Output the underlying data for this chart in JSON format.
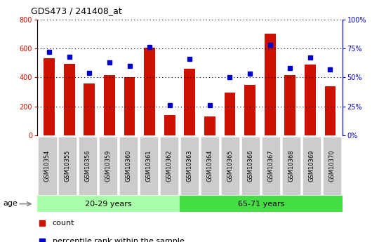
{
  "title": "GDS473 / 241408_at",
  "samples": [
    "GSM10354",
    "GSM10355",
    "GSM10356",
    "GSM10359",
    "GSM10360",
    "GSM10361",
    "GSM10362",
    "GSM10363",
    "GSM10364",
    "GSM10365",
    "GSM10366",
    "GSM10367",
    "GSM10368",
    "GSM10369",
    "GSM10370"
  ],
  "counts": [
    530,
    495,
    360,
    415,
    400,
    605,
    140,
    460,
    130,
    295,
    350,
    700,
    415,
    490,
    340
  ],
  "percentile": [
    72,
    68,
    54,
    63,
    60,
    76,
    26,
    66,
    26,
    50,
    53,
    78,
    58,
    67,
    57
  ],
  "bar_color": "#cc1100",
  "marker_color": "#0000cc",
  "ylim_left": [
    0,
    800
  ],
  "ylim_right": [
    0,
    100
  ],
  "yticks_left": [
    0,
    200,
    400,
    600,
    800
  ],
  "yticks_right": [
    0,
    25,
    50,
    75,
    100
  ],
  "ytick_labels_right": [
    "0%",
    "25%",
    "50%",
    "75%",
    "100%"
  ],
  "group1_label": "20-29 years",
  "group2_label": "65-71 years",
  "group1_count": 7,
  "group2_count": 8,
  "age_label": "age",
  "legend_count": "count",
  "legend_pct": "percentile rank within the sample",
  "bg_color": "#ffffff",
  "tick_bg": "#cccccc",
  "group1_bg": "#aaffaa",
  "group2_bg": "#44dd44",
  "grid_color": "#000000"
}
